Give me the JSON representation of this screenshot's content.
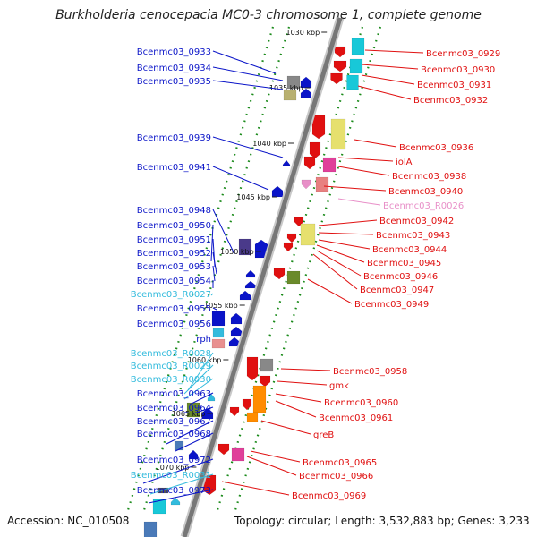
{
  "title": "Burkholderia cenocepacia MC0-3 chromosome 1, complete genome",
  "footer": {
    "accession": "Accession: NC_010508",
    "topology": "Topology: circular; Length: 3,532,883 bp; Genes: 3,233"
  },
  "colors": {
    "left_gene": "#0a14c8",
    "left_rna": "#33bbdd",
    "right_gene": "#e01010",
    "right_rna": "#e88fc8",
    "backbone": "#777777",
    "ticks": "#1a8a1a",
    "dots": "#1a8a1a"
  },
  "ticks": [
    "1030 kbp",
    "1035 kbp",
    "1040 kbp",
    "1045 kbp",
    "1050 kbp",
    "1055 kbp",
    "1060 kbp",
    "1065 kbp",
    "1070 kbp"
  ],
  "left_labels": [
    {
      "text": "Bcenmc03_0933",
      "kind": "gene"
    },
    {
      "text": "Bcenmc03_0934",
      "kind": "gene"
    },
    {
      "text": "Bcenmc03_0935",
      "kind": "gene"
    },
    {
      "text": "Bcenmc03_0939",
      "kind": "gene"
    },
    {
      "text": "Bcenmc03_0941",
      "kind": "gene"
    },
    {
      "text": "Bcenmc03_0948",
      "kind": "gene"
    },
    {
      "text": "Bcenmc03_0950",
      "kind": "gene"
    },
    {
      "text": "Bcenmc03_0951",
      "kind": "gene"
    },
    {
      "text": "Bcenmc03_0952",
      "kind": "gene"
    },
    {
      "text": "Bcenmc03_0953",
      "kind": "gene"
    },
    {
      "text": "Bcenmc03_0954",
      "kind": "gene"
    },
    {
      "text": "Bcenmc03_R0027",
      "kind": "rna"
    },
    {
      "text": "Bcenmc03_0955",
      "kind": "gene"
    },
    {
      "text": "Bcenmc03_0956",
      "kind": "gene"
    },
    {
      "text": "rph",
      "kind": "gene"
    },
    {
      "text": "Bcenmc03_R0028",
      "kind": "rna"
    },
    {
      "text": "Bcenmc03_R0029",
      "kind": "rna"
    },
    {
      "text": "Bcenmc03_R0030",
      "kind": "rna"
    },
    {
      "text": "Bcenmc03_0963",
      "kind": "gene"
    },
    {
      "text": "Bcenmc03_0964",
      "kind": "gene"
    },
    {
      "text": "Bcenmc03_0967",
      "kind": "gene"
    },
    {
      "text": "Bcenmc03_0968",
      "kind": "gene"
    },
    {
      "text": "Bcenmc03_0972",
      "kind": "gene"
    },
    {
      "text": "Bcenmc03_R0031",
      "kind": "rna"
    },
    {
      "text": "Bcenmc03_0973",
      "kind": "gene"
    }
  ],
  "right_labels": [
    {
      "text": "Bcenmc03_0929",
      "kind": "gene"
    },
    {
      "text": "Bcenmc03_0930",
      "kind": "gene"
    },
    {
      "text": "Bcenmc03_0931",
      "kind": "gene"
    },
    {
      "text": "Bcenmc03_0932",
      "kind": "gene"
    },
    {
      "text": "Bcenmc03_0936",
      "kind": "gene"
    },
    {
      "text": "iolA",
      "kind": "gene"
    },
    {
      "text": "Bcenmc03_0938",
      "kind": "gene"
    },
    {
      "text": "Bcenmc03_0940",
      "kind": "gene"
    },
    {
      "text": "Bcenmc03_R0026",
      "kind": "rna"
    },
    {
      "text": "Bcenmc03_0942",
      "kind": "gene"
    },
    {
      "text": "Bcenmc03_0943",
      "kind": "gene"
    },
    {
      "text": "Bcenmc03_0944",
      "kind": "gene"
    },
    {
      "text": "Bcenmc03_0945",
      "kind": "gene"
    },
    {
      "text": "Bcenmc03_0946",
      "kind": "gene"
    },
    {
      "text": "Bcenmc03_0947",
      "kind": "gene"
    },
    {
      "text": "Bcenmc03_0949",
      "kind": "gene"
    },
    {
      "text": "Bcenmc03_0958",
      "kind": "gene"
    },
    {
      "text": "gmk",
      "kind": "gene"
    },
    {
      "text": "Bcenmc03_0960",
      "kind": "gene"
    },
    {
      "text": "Bcenmc03_0961",
      "kind": "gene"
    },
    {
      "text": "greB",
      "kind": "gene"
    },
    {
      "text": "Bcenmc03_0965",
      "kind": "gene"
    },
    {
      "text": "Bcenmc03_0966",
      "kind": "gene"
    },
    {
      "text": "Bcenmc03_0969",
      "kind": "gene"
    }
  ]
}
